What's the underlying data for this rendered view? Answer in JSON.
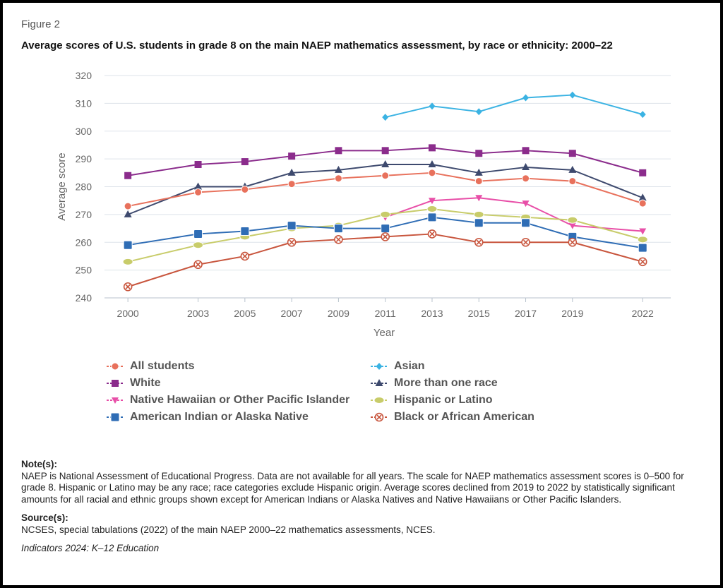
{
  "figure": {
    "label": "Figure 2",
    "title": "Average scores of U.S. students in grade 8 on the main NAEP mathematics assessment, by race or ethnicity: 2000–22"
  },
  "chart_data": {
    "type": "line",
    "title": "Average scores of U.S. students in grade 8 on the main NAEP mathematics assessment, by race or ethnicity: 2000–22",
    "xlabel": "Year",
    "ylabel": "Average score",
    "ylim": [
      240,
      320
    ],
    "yticks": [
      240,
      250,
      260,
      270,
      280,
      290,
      300,
      310,
      320
    ],
    "x": [
      2000,
      2003,
      2005,
      2007,
      2009,
      2011,
      2013,
      2015,
      2017,
      2019,
      2022
    ],
    "xtick_labels": [
      "2000",
      "2003",
      "2005",
      "2007",
      "2009",
      "2011",
      "2013",
      "2015",
      "2017",
      "2019",
      "2022"
    ],
    "grid": true,
    "legend_position": "bottom",
    "series": [
      {
        "name": "Asian",
        "color": "#3BB3E3",
        "marker": "diamond",
        "values": [
          null,
          null,
          null,
          null,
          null,
          305,
          309,
          307,
          312,
          313,
          306
        ]
      },
      {
        "name": "White",
        "color": "#8B2C8C",
        "marker": "square-small",
        "values": [
          284,
          288,
          289,
          291,
          293,
          293,
          294,
          292,
          293,
          292,
          285
        ]
      },
      {
        "name": "More than one race",
        "color": "#3E4A6E",
        "marker": "triangle-up",
        "values": [
          270,
          280,
          280,
          285,
          286,
          288,
          288,
          285,
          287,
          286,
          276
        ]
      },
      {
        "name": "All students",
        "color": "#E8715C",
        "marker": "circle",
        "values": [
          273,
          278,
          279,
          281,
          283,
          284,
          285,
          282,
          283,
          282,
          274
        ]
      },
      {
        "name": "Native Hawaiian or Other Pacific Islander",
        "color": "#E84FA8",
        "marker": "triangle-down",
        "values": [
          null,
          null,
          null,
          null,
          null,
          269,
          275,
          276,
          274,
          266,
          264
        ]
      },
      {
        "name": "Hispanic or Latino",
        "color": "#C8CC6A",
        "marker": "ellipse",
        "values": [
          253,
          259,
          262,
          265,
          266,
          270,
          272,
          270,
          269,
          268,
          261
        ]
      },
      {
        "name": "American Indian or Alaska Native",
        "color": "#2F6DB5",
        "marker": "square",
        "values": [
          259,
          263,
          264,
          266,
          265,
          265,
          269,
          267,
          267,
          262,
          258
        ]
      },
      {
        "name": "Black or African American",
        "color": "#C8553D",
        "marker": "circle-x",
        "values": [
          244,
          252,
          255,
          260,
          261,
          262,
          263,
          260,
          260,
          260,
          253
        ]
      }
    ]
  },
  "legend": [
    {
      "name": "All students",
      "color": "#E8715C",
      "marker": "circle"
    },
    {
      "name": "Asian",
      "color": "#3BB3E3",
      "marker": "diamond"
    },
    {
      "name": "White",
      "color": "#8B2C8C",
      "marker": "square-small"
    },
    {
      "name": "More than one race",
      "color": "#3E4A6E",
      "marker": "triangle-up"
    },
    {
      "name": "Native Hawaiian or Other Pacific Islander",
      "color": "#E84FA8",
      "marker": "triangle-down"
    },
    {
      "name": "Hispanic or Latino",
      "color": "#C8CC6A",
      "marker": "ellipse"
    },
    {
      "name": "American Indian or Alaska Native",
      "color": "#2F6DB5",
      "marker": "square"
    },
    {
      "name": "Black or African American",
      "color": "#C8553D",
      "marker": "circle-x"
    }
  ],
  "notes": {
    "heading": "Note(s):",
    "text": "NAEP is National Assessment of Educational Progress. Data are not available for all years. The scale for NAEP mathematics assessment scores is 0–500 for grade 8. Hispanic or Latino may be any race; race categories exclude Hispanic origin. Average scores declined from 2019 to 2022 by statistically significant amounts for all racial and ethnic groups shown except for American Indians or Alaska Natives and Native Hawaiians or Other Pacific Islanders.",
    "source_heading": "Source(s):",
    "source_text": "NCSES, special tabulations (2022) of the main NAEP 2000–22 mathematics assessments, NCES.",
    "footer": "Indicators 2024: K–12 Education"
  }
}
